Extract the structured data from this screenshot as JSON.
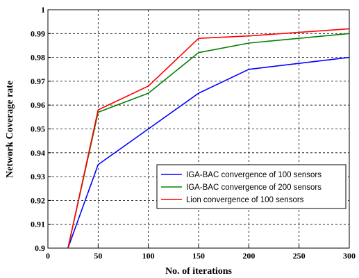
{
  "chart_data": {
    "type": "line",
    "title": "",
    "xlabel": "No. of iterations",
    "ylabel": "Network Coverage rate",
    "xlim": [
      0,
      300
    ],
    "ylim": [
      0.9,
      1.0
    ],
    "xticks": [
      0,
      50,
      100,
      150,
      200,
      250,
      300
    ],
    "yticks": [
      0.9,
      0.91,
      0.92,
      0.93,
      0.94,
      0.95,
      0.96,
      0.97,
      0.98,
      0.99,
      1.0
    ],
    "xtick_labels": [
      "0",
      "50",
      "100",
      "150",
      "200",
      "250",
      "300"
    ],
    "ytick_labels": [
      "0.9",
      "0.91",
      "0.92",
      "0.93",
      "0.94",
      "0.95",
      "0.96",
      "0.97",
      "0.98",
      "0.99",
      "1"
    ],
    "grid": true,
    "legend_position": "bottom-right",
    "series": [
      {
        "name": "IGA-BAC convergence of 100 sensors",
        "color": "#0000ff",
        "x": [
          20,
          50,
          100,
          150,
          200,
          300
        ],
        "y": [
          0.9,
          0.935,
          0.95,
          0.965,
          0.975,
          0.98
        ]
      },
      {
        "name": "IGA-BAC convergence of 200 sensors",
        "color": "#008000",
        "x": [
          20,
          50,
          100,
          150,
          200,
          300
        ],
        "y": [
          0.9,
          0.957,
          0.965,
          0.982,
          0.986,
          0.99
        ]
      },
      {
        "name": "Lion convergence of 100 sensors",
        "color": "#ff0000",
        "x": [
          20,
          50,
          100,
          150,
          200,
          300
        ],
        "y": [
          0.9,
          0.958,
          0.968,
          0.988,
          0.989,
          0.992
        ]
      }
    ]
  }
}
